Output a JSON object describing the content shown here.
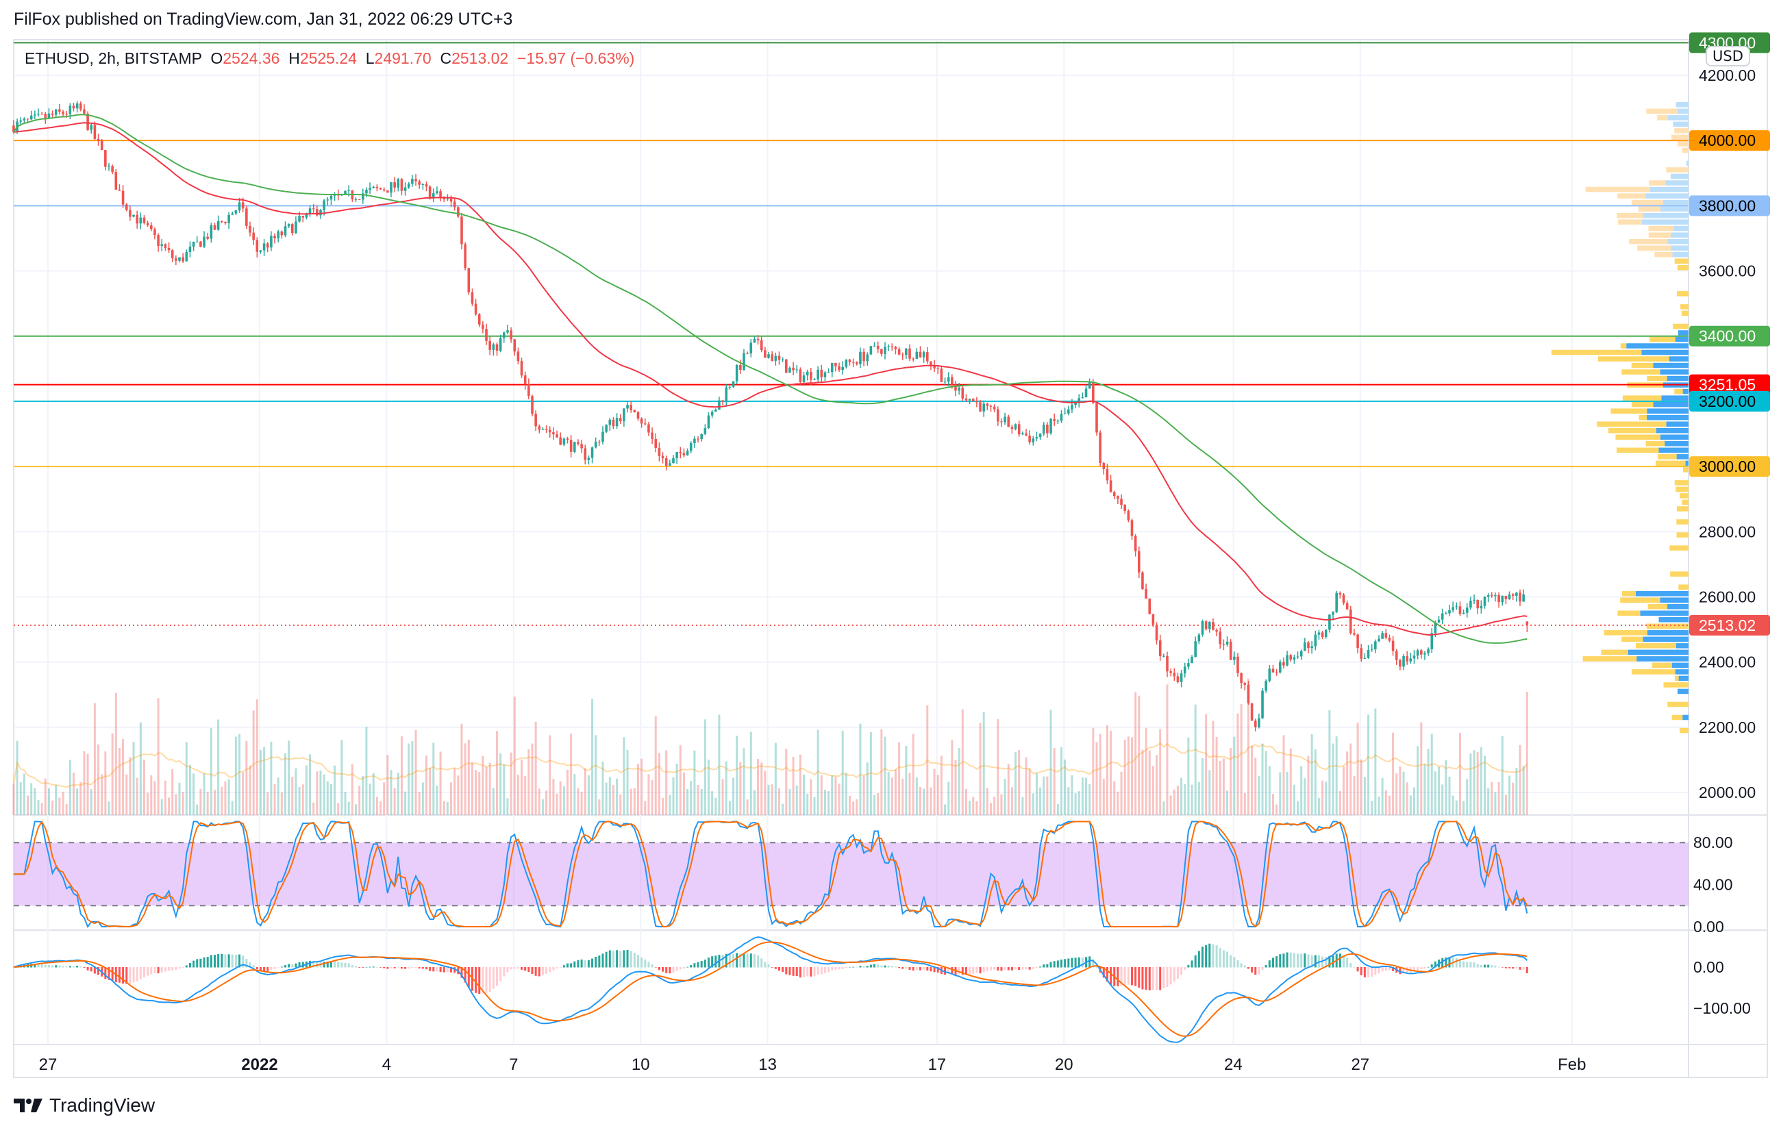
{
  "publisher_line": "FilFox published on TradingView.com, Jan 31, 2022 06:29 UTC+3",
  "legend": {
    "symbol": "ETHUSD, 2h, BITSTAMP",
    "open_label": "O",
    "open": "2524.36",
    "high_label": "H",
    "high": "2525.24",
    "low_label": "L",
    "low": "2491.70",
    "close_label": "C",
    "close": "2513.02",
    "change": "−15.97 (−0.63%)"
  },
  "currency": "USD",
  "brand": "TradingView",
  "colors": {
    "up": "#26a69a",
    "down": "#ef5350",
    "ema": "#f23645",
    "ma": "#4caf50",
    "rsi_k": "#2196f3",
    "rsi_d": "#ff6d00",
    "rsi_band": "#e1bee7"
  },
  "price_axis": [
    "4200.00",
    "3600.00",
    "2800.00",
    "2600.00",
    "2400.00",
    "2200.00",
    "2000.00"
  ],
  "level_lines": [
    {
      "price": 4300,
      "label": "4300.00",
      "color": "#388e3c",
      "text": "#ffffff"
    },
    {
      "price": 4000,
      "label": "4000.00",
      "color": "#ff9800",
      "text": "#000000"
    },
    {
      "price": 3800,
      "label": "3800.00",
      "color": "#90bff9",
      "text": "#000000"
    },
    {
      "price": 3400,
      "label": "3400.00",
      "color": "#4caf50",
      "text": "#ffffff"
    },
    {
      "price": 3251.05,
      "label": "3251.05",
      "color": "#ff0000",
      "text": "#ffffff"
    },
    {
      "price": 3200,
      "label": "3200.00",
      "color": "#00bcd4",
      "text": "#000000"
    },
    {
      "price": 3000,
      "label": "3000.00",
      "color": "#fbc02d",
      "text": "#000000"
    }
  ],
  "last_price": {
    "price": 2513.02,
    "label": "2513.02",
    "color": "#ef5350"
  },
  "rsi_axis": [
    "80.00",
    "40.00",
    "0.00"
  ],
  "macd_axis": [
    "0.00",
    "−100.00"
  ],
  "time_axis": [
    {
      "label": "27",
      "day": 0
    },
    {
      "label": "2022",
      "day": 5,
      "bold": true
    },
    {
      "label": "4",
      "day": 8
    },
    {
      "label": "7",
      "day": 11
    },
    {
      "label": "10",
      "day": 14
    },
    {
      "label": "13",
      "day": 17
    },
    {
      "label": "17",
      "day": 21
    },
    {
      "label": "20",
      "day": 24
    },
    {
      "label": "24",
      "day": 28
    },
    {
      "label": "27",
      "day": 31
    },
    {
      "label": "Feb",
      "day": 36
    }
  ],
  "chart_data": {
    "type": "candlestick",
    "title": "ETHUSD, 2h, BITSTAMP",
    "x_unit": "days since Dec 27 2021",
    "ylim": [
      1950,
      4320
    ],
    "approx_close_path": [
      [
        -0.81,
        4046
      ],
      [
        0.75,
        4098
      ],
      [
        1.16,
        3993
      ],
      [
        1.83,
        3800
      ],
      [
        3.05,
        3625
      ],
      [
        4.53,
        3800
      ],
      [
        4.93,
        3660
      ],
      [
        6.68,
        3818
      ],
      [
        8.57,
        3870
      ],
      [
        9.65,
        3800
      ],
      [
        9.92,
        3556
      ],
      [
        10.46,
        3345
      ],
      [
        10.86,
        3415
      ],
      [
        11.27,
        3240
      ],
      [
        11.54,
        3135
      ],
      [
        12.75,
        3030
      ],
      [
        13.15,
        3117
      ],
      [
        13.83,
        3188
      ],
      [
        14.64,
        2995
      ],
      [
        15.58,
        3135
      ],
      [
        16.66,
        3380
      ],
      [
        17.74,
        3275
      ],
      [
        18.81,
        3310
      ],
      [
        19.62,
        3363
      ],
      [
        20.7,
        3345
      ],
      [
        21.24,
        3258
      ],
      [
        22.59,
        3135
      ],
      [
        23.26,
        3083
      ],
      [
        24.47,
        3205
      ],
      [
        24.61,
        3258
      ],
      [
        24.88,
        2995
      ],
      [
        25.55,
        2820
      ],
      [
        25.96,
        2575
      ],
      [
        26.36,
        2400
      ],
      [
        26.77,
        2347
      ],
      [
        27.3,
        2522
      ],
      [
        27.84,
        2452
      ],
      [
        28.25,
        2330
      ],
      [
        28.52,
        2190
      ],
      [
        28.79,
        2364
      ],
      [
        29.33,
        2417
      ],
      [
        30.13,
        2487
      ],
      [
        30.54,
        2627
      ],
      [
        30.81,
        2487
      ],
      [
        31.08,
        2400
      ],
      [
        31.62,
        2487
      ],
      [
        31.89,
        2400
      ],
      [
        32.56,
        2434
      ],
      [
        32.83,
        2539
      ],
      [
        33.64,
        2574
      ],
      [
        34.45,
        2609
      ],
      [
        34.85,
        2592
      ],
      [
        34.99,
        2513
      ]
    ]
  }
}
